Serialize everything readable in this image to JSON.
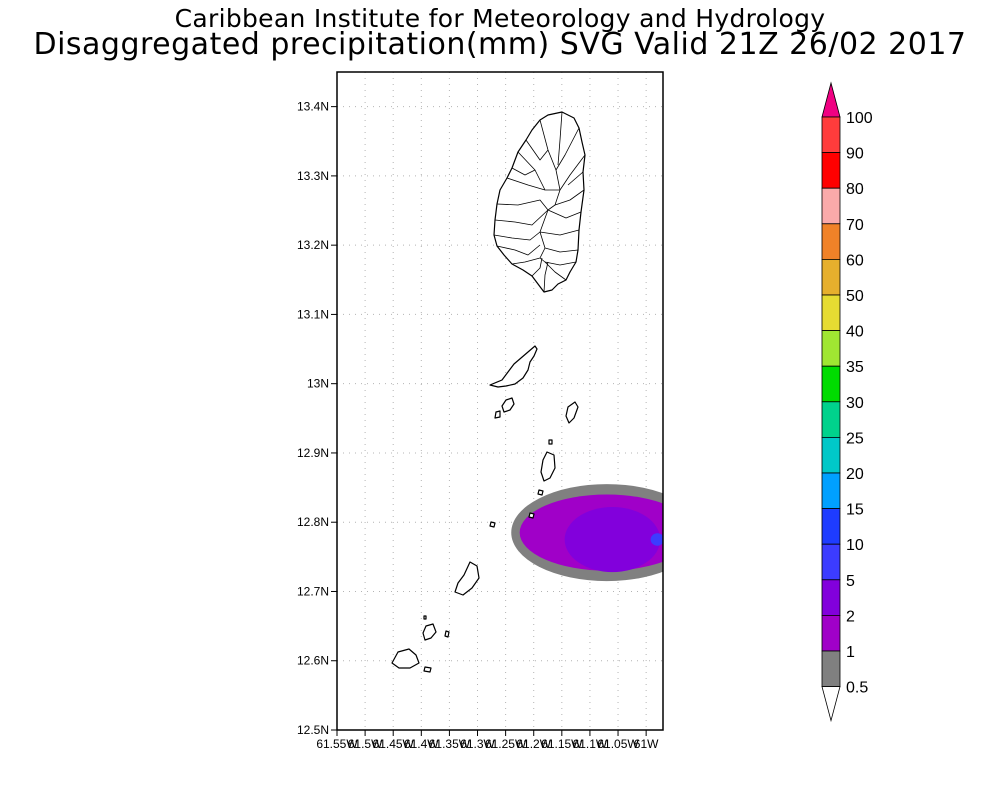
{
  "header": {
    "institute": "Caribbean Institute for Meteorology and Hydrology",
    "product": "Disaggregated precipitation(mm) SVG Valid 21Z 26/02 2017"
  },
  "map": {
    "lat_range": [
      12.5,
      13.45
    ],
    "lon_range": [
      -61.55,
      -60.97
    ],
    "lat_ticks": [
      {
        "value": 12.5,
        "label": "12.5N"
      },
      {
        "value": 12.6,
        "label": "12.6N"
      },
      {
        "value": 12.7,
        "label": "12.7N"
      },
      {
        "value": 12.8,
        "label": "12.8N"
      },
      {
        "value": 12.9,
        "label": "12.9N"
      },
      {
        "value": 13.0,
        "label": "13N"
      },
      {
        "value": 13.1,
        "label": "13.1N"
      },
      {
        "value": 13.2,
        "label": "13.2N"
      },
      {
        "value": 13.3,
        "label": "13.3N"
      },
      {
        "value": 13.4,
        "label": "13.4N"
      }
    ],
    "lon_ticks": [
      {
        "value": -61.55,
        "label": "61.55W"
      },
      {
        "value": -61.5,
        "label": "61.5W"
      },
      {
        "value": -61.45,
        "label": "61.45W"
      },
      {
        "value": -61.4,
        "label": "61.4W"
      },
      {
        "value": -61.35,
        "label": "61.35W"
      },
      {
        "value": -61.3,
        "label": "61.3W"
      },
      {
        "value": -61.25,
        "label": "61.25W"
      },
      {
        "value": -61.2,
        "label": "61.2W"
      },
      {
        "value": -61.15,
        "label": "61.15W"
      },
      {
        "value": -61.1,
        "label": "61.1W"
      },
      {
        "value": -61.05,
        "label": "61.05W"
      },
      {
        "value": -61.0,
        "label": "61W"
      }
    ],
    "precip_areas": [
      {
        "level": "0.5",
        "color": "#808080",
        "center": [
          -61.07,
          12.785
        ],
        "rx_deg": 0.17,
        "ry_deg": 0.07
      },
      {
        "level": "1",
        "color": "#a000c8",
        "center": [
          -61.07,
          12.785
        ],
        "rx_deg": 0.155,
        "ry_deg": 0.055
      },
      {
        "level": "2",
        "color": "#8200dc",
        "center": [
          -61.06,
          12.775
        ],
        "rx_deg": 0.085,
        "ry_deg": 0.047
      },
      {
        "level": "5",
        "color": "#3c3cff",
        "center": [
          -60.98,
          12.775
        ],
        "rx_deg": 0.012,
        "ry_deg": 0.009
      }
    ]
  },
  "legend": {
    "levels": [
      {
        "label": "0.5",
        "color": "#808080"
      },
      {
        "label": "1",
        "color": "#a000c8"
      },
      {
        "label": "2",
        "color": "#8200dc"
      },
      {
        "label": "5",
        "color": "#3c3cff"
      },
      {
        "label": "10",
        "color": "#1e3cff"
      },
      {
        "label": "15",
        "color": "#00a0ff"
      },
      {
        "label": "20",
        "color": "#00c8c8"
      },
      {
        "label": "25",
        "color": "#00d28c"
      },
      {
        "label": "30",
        "color": "#00dc00"
      },
      {
        "label": "35",
        "color": "#a0e632"
      },
      {
        "label": "40",
        "color": "#e6dc32"
      },
      {
        "label": "50",
        "color": "#e6af2d"
      },
      {
        "label": "60",
        "color": "#f08228"
      },
      {
        "label": "70",
        "color": "#faaaaa"
      },
      {
        "label": "80",
        "color": "#ff0000"
      },
      {
        "label": "90",
        "color": "#ff3c3c"
      },
      {
        "label": "100",
        "color": "#f00082"
      }
    ]
  }
}
